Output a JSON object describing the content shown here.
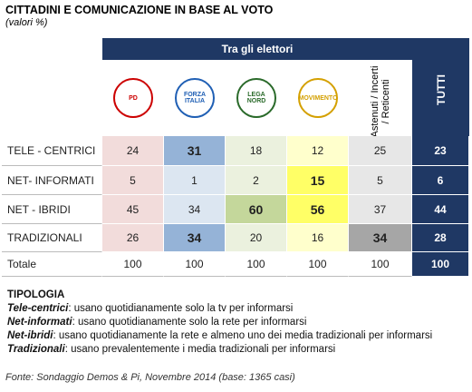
{
  "header": {
    "title": "CITTADINI E COMUNICAZIONE IN BASE AL VOTO",
    "subtitle": "(valori %)"
  },
  "table": {
    "group_header": "Tra gli elettori",
    "columns": [
      "PD",
      "FORZA ITALIA",
      "LEGA NORD",
      "MOVIMENTO",
      "Astenuti / Incerti / Reticenti",
      "TUTTI"
    ],
    "rows": [
      {
        "label": "TELE - CENTRICI",
        "values": [
          24,
          31,
          18,
          12,
          25,
          23
        ]
      },
      {
        "label": "NET- INFORMATI",
        "values": [
          5,
          1,
          2,
          15,
          5,
          6
        ]
      },
      {
        "label": "NET - IBRIDI",
        "values": [
          45,
          34,
          60,
          56,
          37,
          44
        ]
      },
      {
        "label": "TRADIZIONALI",
        "values": [
          26,
          34,
          20,
          16,
          34,
          28
        ]
      },
      {
        "label": "Totale",
        "values": [
          100,
          100,
          100,
          100,
          100,
          100
        ]
      }
    ]
  },
  "legend": {
    "title": "TIPOLOGIA",
    "items": [
      {
        "term": "Tele-centrici",
        "text": ": usano quotidianamente solo la tv per informarsi"
      },
      {
        "term": "Net-informati",
        "text": ": usano quotidianamente solo la rete per informarsi"
      },
      {
        "term": "Net-ibridi",
        "text": ": usano quotidianamente la rete e almeno uno dei media tradizionali per informarsi"
      },
      {
        "term": "Tradizionali",
        "text": ": usano prevalentemente i media tradizionali per informarsi"
      }
    ]
  },
  "source": "Fonte: Sondaggio Demos & Pi, Novembre 2014 (base: 1365 casi)"
}
